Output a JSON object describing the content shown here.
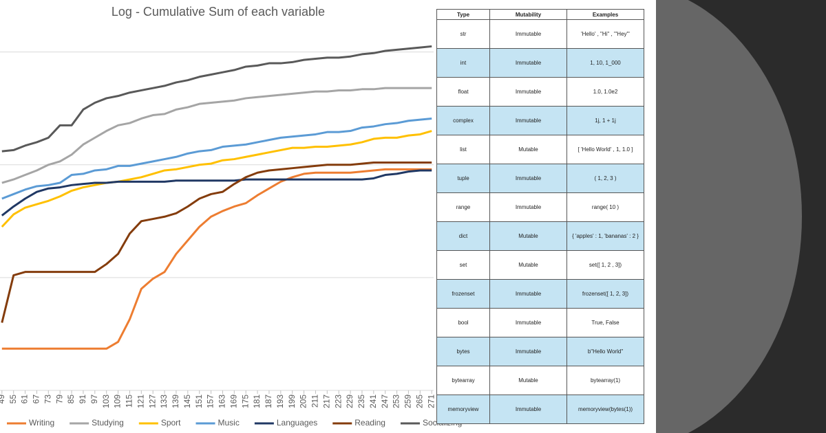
{
  "chart_data": {
    "type": "line",
    "title": "Log - Cumulative Sum of each variable",
    "x": [
      49,
      55,
      61,
      67,
      73,
      79,
      85,
      91,
      97,
      103,
      109,
      115,
      121,
      127,
      133,
      139,
      145,
      151,
      157,
      163,
      169,
      175,
      181,
      187,
      193,
      199,
      205,
      211,
      217,
      223,
      229,
      235,
      241,
      247,
      253,
      259,
      265,
      271
    ],
    "xticks": [
      49,
      55,
      61,
      67,
      73,
      79,
      85,
      91,
      97,
      103,
      109,
      115,
      121,
      127,
      133,
      139,
      145,
      151,
      157,
      163,
      169,
      175,
      181,
      187,
      193,
      199,
      205,
      211,
      217,
      223,
      229,
      235,
      241,
      247,
      253,
      259,
      265,
      271
    ],
    "xlim": [
      48,
      272
    ],
    "ylim": [
      0,
      3.4
    ],
    "grid_lines": [
      1,
      2,
      3
    ],
    "log_scale": true,
    "series": [
      {
        "name": "Writing",
        "color": "#ed7d31",
        "values": [
          0.37,
          0.37,
          0.37,
          0.37,
          0.37,
          0.37,
          0.37,
          0.37,
          0.37,
          0.37,
          0.43,
          0.63,
          0.9,
          0.99,
          1.05,
          1.21,
          1.33,
          1.45,
          1.54,
          1.59,
          1.63,
          1.66,
          1.73,
          1.79,
          1.85,
          1.89,
          1.92,
          1.93,
          1.93,
          1.93,
          1.93,
          1.94,
          1.95,
          1.96,
          1.96,
          1.96,
          1.96,
          1.96
        ]
      },
      {
        "name": "Studying",
        "color": "#a5a5a5",
        "values": [
          1.84,
          1.87,
          1.91,
          1.95,
          2.0,
          2.03,
          2.09,
          2.18,
          2.24,
          2.3,
          2.35,
          2.37,
          2.41,
          2.44,
          2.45,
          2.49,
          2.51,
          2.54,
          2.55,
          2.56,
          2.57,
          2.59,
          2.6,
          2.61,
          2.62,
          2.63,
          2.64,
          2.65,
          2.65,
          2.66,
          2.66,
          2.67,
          2.67,
          2.68,
          2.68,
          2.68,
          2.68,
          2.68
        ]
      },
      {
        "name": "Sport",
        "color": "#ffc000",
        "values": [
          1.45,
          1.56,
          1.62,
          1.65,
          1.68,
          1.72,
          1.77,
          1.8,
          1.82,
          1.84,
          1.85,
          1.87,
          1.89,
          1.92,
          1.95,
          1.96,
          1.98,
          2.0,
          2.01,
          2.04,
          2.05,
          2.07,
          2.09,
          2.11,
          2.13,
          2.15,
          2.15,
          2.16,
          2.16,
          2.17,
          2.18,
          2.2,
          2.23,
          2.24,
          2.24,
          2.26,
          2.27,
          2.3
        ]
      },
      {
        "name": "Music",
        "color": "#5b9bd5",
        "values": [
          1.7,
          1.74,
          1.78,
          1.81,
          1.82,
          1.84,
          1.91,
          1.92,
          1.95,
          1.96,
          1.99,
          1.99,
          2.01,
          2.03,
          2.05,
          2.07,
          2.1,
          2.12,
          2.13,
          2.16,
          2.17,
          2.18,
          2.2,
          2.22,
          2.24,
          2.25,
          2.26,
          2.27,
          2.29,
          2.29,
          2.3,
          2.33,
          2.34,
          2.36,
          2.37,
          2.39,
          2.4,
          2.41
        ]
      },
      {
        "name": "Languages",
        "color": "#203864",
        "values": [
          1.55,
          1.63,
          1.7,
          1.76,
          1.79,
          1.8,
          1.82,
          1.83,
          1.84,
          1.84,
          1.85,
          1.85,
          1.85,
          1.85,
          1.85,
          1.86,
          1.86,
          1.86,
          1.86,
          1.86,
          1.86,
          1.87,
          1.87,
          1.87,
          1.87,
          1.87,
          1.87,
          1.87,
          1.87,
          1.87,
          1.87,
          1.87,
          1.88,
          1.91,
          1.92,
          1.94,
          1.95,
          1.95
        ]
      },
      {
        "name": "Reading",
        "color": "#843c0c",
        "values": [
          0.6,
          1.02,
          1.05,
          1.05,
          1.05,
          1.05,
          1.05,
          1.05,
          1.05,
          1.12,
          1.21,
          1.39,
          1.5,
          1.52,
          1.54,
          1.57,
          1.63,
          1.7,
          1.74,
          1.76,
          1.83,
          1.89,
          1.93,
          1.95,
          1.96,
          1.97,
          1.98,
          1.99,
          2.0,
          2.0,
          2.0,
          2.01,
          2.02,
          2.02,
          2.02,
          2.02,
          2.02,
          2.02
        ]
      },
      {
        "name": "Socializing",
        "color": "#595959",
        "values": [
          2.12,
          2.13,
          2.17,
          2.2,
          2.24,
          2.35,
          2.35,
          2.49,
          2.55,
          2.59,
          2.61,
          2.64,
          2.66,
          2.68,
          2.7,
          2.73,
          2.75,
          2.78,
          2.8,
          2.82,
          2.84,
          2.87,
          2.88,
          2.9,
          2.9,
          2.91,
          2.93,
          2.94,
          2.95,
          2.95,
          2.96,
          2.98,
          2.99,
          3.01,
          3.02,
          3.03,
          3.04,
          3.05
        ]
      }
    ]
  },
  "table": {
    "headers": [
      "Type",
      "Mutability",
      "Examples"
    ],
    "rows": [
      [
        "str",
        "Immutable",
        "'Hello' , \"Hi\" , '\"Hey\"'"
      ],
      [
        "int",
        "Immutable",
        "1, 10, 1_000"
      ],
      [
        "float",
        "Immutable",
        "1.0, 1.0e2"
      ],
      [
        "complex",
        "Immutable",
        "1j, 1 + 1j"
      ],
      [
        "list",
        "Mutable",
        "[ 'Hello World' , 1, 1.0 ]"
      ],
      [
        "tuple",
        "Immutable",
        "( 1, 2, 3 )"
      ],
      [
        "range",
        "Immutable",
        "range( 10 )"
      ],
      [
        "dict",
        "Mutable",
        "{ 'apples' : 1, 'bananas' : 2 }"
      ],
      [
        "set",
        "Mutable",
        "set([ 1, 2 , 3])"
      ],
      [
        "frozenset",
        "Immutable",
        "frozenset([ 1, 2, 3])"
      ],
      [
        "bool",
        "Immutable",
        "True, False"
      ],
      [
        "bytes",
        "Immutable",
        "b\"Hello World\""
      ],
      [
        "bytearray",
        "Mutable",
        "bytearray(1)"
      ],
      [
        "memoryview",
        "Immutable",
        "memoryview(bytes(1))"
      ]
    ]
  }
}
